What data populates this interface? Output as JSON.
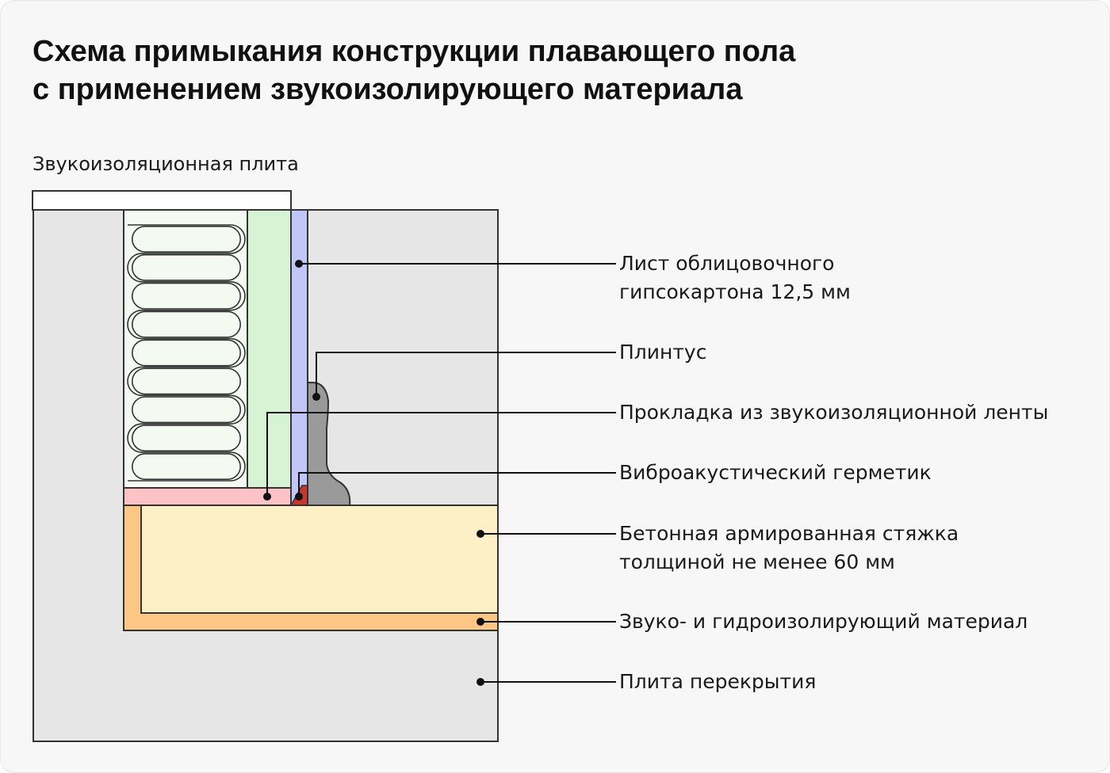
{
  "title": {
    "line1": "Схема примыкания конструкции плавающего пола",
    "line2": "с применением звукоизолирующего материала"
  },
  "caption": "Звукоизоляционная плита",
  "labels": {
    "drywall": {
      "line1": "Лист облицовочного",
      "line2": "гипсокартона 12,5 мм"
    },
    "plinth": "Плинтус",
    "tape": "Прокладка из звукоизоляционной ленты",
    "sealant": "Виброакустический герметик",
    "screed": {
      "line1": "Бетонная армированная стяжка",
      "line2": "толщиной не менее 60 мм"
    },
    "insulation": "Звуко- и гидроизолирующий материал",
    "slab": "Плита перекрытия"
  },
  "colors": {
    "slab": "#e6e6e6",
    "wool": "#f4f9f1",
    "soundboard": "#d6f4d4",
    "drywall": "#c2c5f8",
    "tape": "#fcc2c6",
    "sealant": "#c9362d",
    "plinth": "#9a9a9a",
    "screed": "#fef0c6",
    "insulation": "#fcc685",
    "stroke": "#333333",
    "leader": "#111111"
  }
}
